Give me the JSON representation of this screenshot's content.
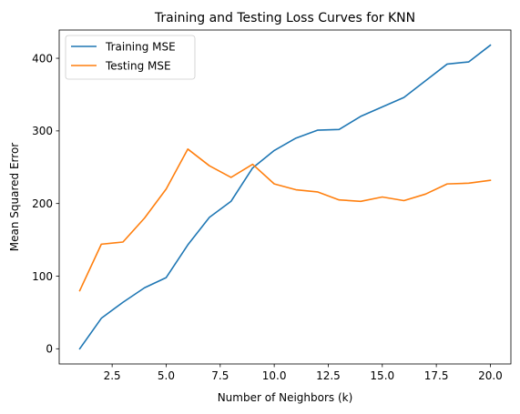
{
  "chart_data": {
    "type": "line",
    "title": "Training and Testing Loss Curves for KNN",
    "xlabel": "Number of Neighbors (k)",
    "ylabel": "Mean Squared Error",
    "xlim": [
      0.05,
      20.95
    ],
    "ylim": [
      -20.9,
      438.9
    ],
    "xticks": [
      2.5,
      5.0,
      7.5,
      10.0,
      12.5,
      15.0,
      17.5,
      20.0
    ],
    "xtick_labels": [
      "2.5",
      "5.0",
      "7.5",
      "10.0",
      "12.5",
      "15.0",
      "17.5",
      "20.0"
    ],
    "yticks": [
      0,
      100,
      200,
      300,
      400
    ],
    "ytick_labels": [
      "0",
      "100",
      "200",
      "300",
      "400"
    ],
    "grid": false,
    "legend_position": "upper left",
    "x": [
      1,
      2,
      3,
      4,
      5,
      6,
      7,
      8,
      9,
      10,
      11,
      12,
      13,
      14,
      15,
      16,
      17,
      18,
      19,
      20
    ],
    "series": [
      {
        "name": "Training MSE",
        "color": "#1f77b4",
        "values": [
          0,
          42,
          64,
          84,
          98,
          143,
          181,
          203,
          249,
          273,
          290,
          301,
          302,
          320,
          333,
          346,
          369,
          392,
          395,
          418
        ]
      },
      {
        "name": "Testing MSE",
        "color": "#ff7f0e",
        "values": [
          80,
          144,
          147,
          180,
          220,
          275,
          252,
          236,
          254,
          227,
          219,
          216,
          205,
          203,
          209,
          204,
          213,
          227,
          228,
          232
        ]
      }
    ]
  }
}
